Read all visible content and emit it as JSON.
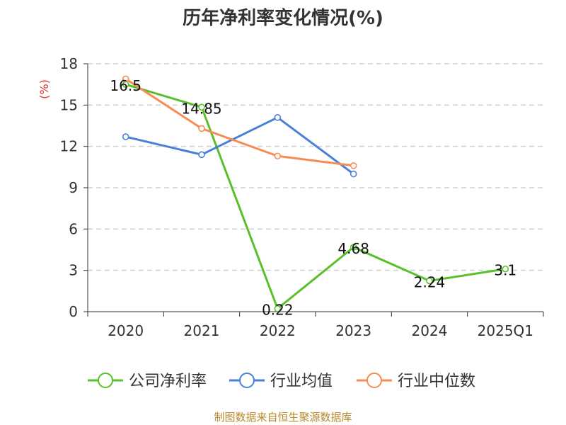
{
  "chart_data": {
    "type": "line",
    "title": "历年净利率变化情况(%)",
    "ylabel": "(%)",
    "xlabel": "",
    "categories": [
      "2020",
      "2021",
      "2022",
      "2023",
      "2024",
      "2025Q1"
    ],
    "ylim": [
      0,
      18
    ],
    "yticks": [
      0,
      3,
      6,
      9,
      12,
      15,
      18
    ],
    "grid": true,
    "legend_position": "bottom",
    "series": [
      {
        "name": "公司净利率",
        "color": "#5ac02a",
        "values": [
          16.5,
          14.85,
          0.22,
          4.68,
          2.24,
          3.1
        ],
        "labels": [
          "16.5",
          "14.85",
          "0.22",
          "4.68",
          "2.24",
          "3.1"
        ]
      },
      {
        "name": "行业均值",
        "color": "#4a7fd8",
        "values": [
          12.7,
          11.4,
          14.1,
          10.0,
          null,
          null
        ]
      },
      {
        "name": "行业中位数",
        "color": "#f58c55",
        "values": [
          16.9,
          13.3,
          11.3,
          10.6,
          null,
          null
        ]
      }
    ]
  },
  "footer": {
    "source": "制图数据来自恒生聚源数据库"
  }
}
